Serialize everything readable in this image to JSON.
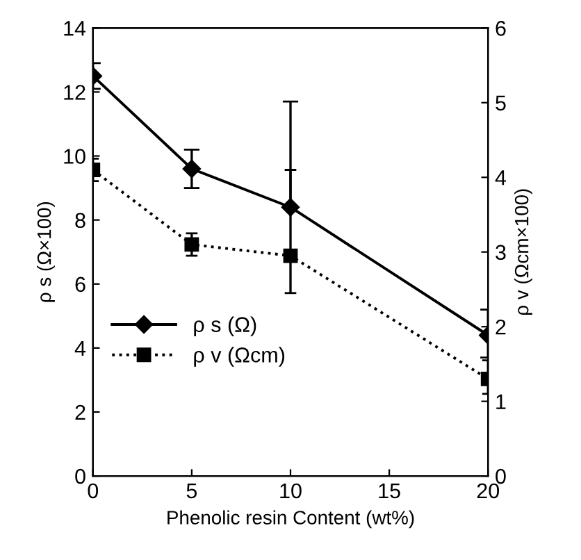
{
  "chart_data": {
    "type": "line",
    "xlabel": "Phenolic resin Content (wt%)",
    "ylabel": "ρ s (Ω×100)",
    "y2label": "ρ v (Ωcm×100)",
    "x": [
      0,
      5,
      10,
      20
    ],
    "xlim": [
      0,
      20
    ],
    "xticks": [
      0,
      5,
      10,
      15,
      20
    ],
    "ylim": [
      0,
      14
    ],
    "yticks": [
      0,
      2,
      4,
      6,
      8,
      10,
      12,
      14
    ],
    "y2lim": [
      0,
      6
    ],
    "y2ticks": [
      0,
      1,
      2,
      3,
      4,
      5,
      6
    ],
    "grid": false,
    "legend": "left",
    "series": [
      {
        "name": "ρ s (Ω)",
        "color": "#000000",
        "values": [
          12.5,
          9.6,
          8.4,
          4.4
        ],
        "errors": [
          0.4,
          0.6,
          [
            8.4,
            11.7
          ],
          [
            3.7,
            5.2
          ]
        ],
        "marker": "diamond",
        "line_style": "solid"
      },
      {
        "name": "ρ v (Ωcm)",
        "color": "#000000",
        "axis": "y2",
        "values": [
          4.1,
          3.1,
          2.95,
          1.3
        ],
        "errors": [
          0.15,
          0.15,
          [
            2.45,
            4.1
          ],
          [
            1.1,
            1.55
          ]
        ],
        "marker": "square",
        "line_style": "dotted"
      }
    ]
  }
}
